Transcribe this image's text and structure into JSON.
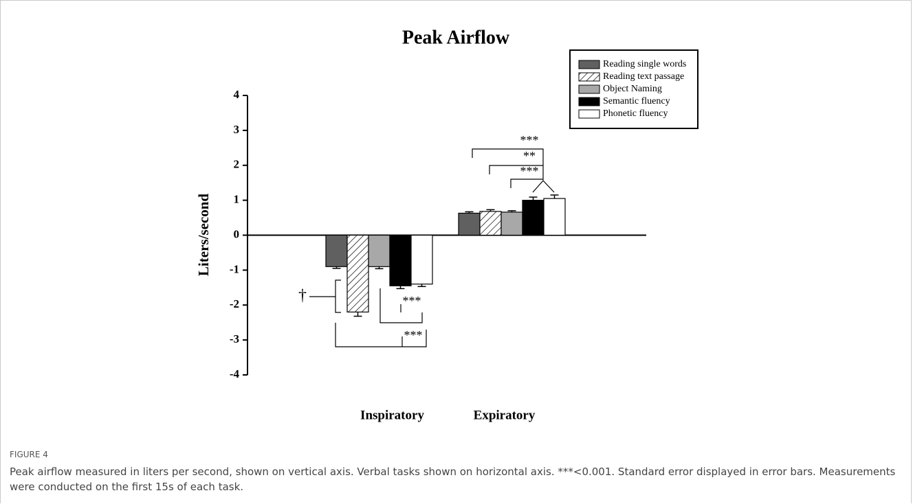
{
  "chart_data": {
    "type": "bar",
    "title": "Peak Airflow",
    "y_label": "Liters/second",
    "categories": [
      "Inspiratory",
      "Expiratory"
    ],
    "series": [
      {
        "name": "Reading single words",
        "color": "#606060",
        "values": [
          -0.9,
          0.63
        ],
        "errors": [
          0.05,
          0.04
        ]
      },
      {
        "name": "Reading text passage",
        "color": "#ffffff",
        "pattern": "hatch",
        "values": [
          -2.2,
          0.68
        ],
        "errors": [
          0.12,
          0.05
        ]
      },
      {
        "name": "Object Naming",
        "color": "#a8a8a8",
        "values": [
          -0.9,
          0.66
        ],
        "errors": [
          0.06,
          0.04
        ]
      },
      {
        "name": "Semantic fluency",
        "color": "#000000",
        "values": [
          -1.45,
          1.0
        ],
        "errors": [
          0.08,
          0.09
        ]
      },
      {
        "name": "Phonetic fluency",
        "color": "#ffffff",
        "values": [
          -1.4,
          1.05
        ],
        "errors": [
          0.07,
          0.1
        ]
      }
    ],
    "ylim": [
      -4,
      4
    ],
    "yticks": [
      -4,
      -3,
      -2,
      -1,
      0,
      1,
      2,
      3,
      4
    ],
    "legend": "upper right",
    "annotations": [
      "†",
      "***",
      "***",
      "***",
      "**",
      "***"
    ]
  },
  "figure_label": "FIGURE 4",
  "caption": "Peak airflow measured in liters per second, shown on vertical axis. Verbal tasks shown on horizontal axis. ***<0.001. Standard error displayed in error bars. Measurements were conducted on the first 15s of each task."
}
